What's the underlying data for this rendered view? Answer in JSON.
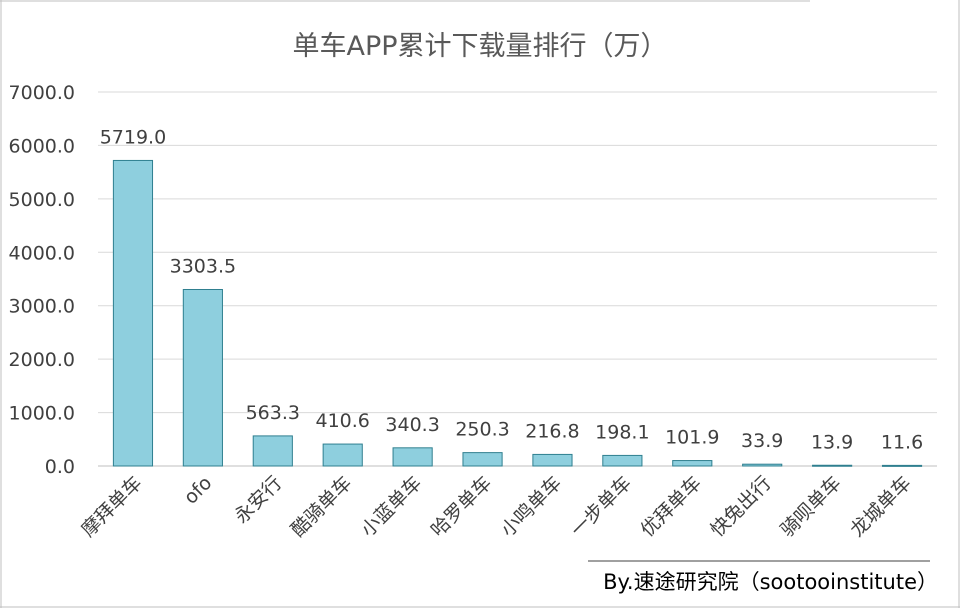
{
  "chart_data": {
    "type": "bar",
    "title": "单车APP累计下载量排行（万）",
    "categories": [
      "摩拜单车",
      "ofo",
      "永安行",
      "酷骑单车",
      "小蓝单车",
      "哈罗单车",
      "小鸣单车",
      "一步单车",
      "优拜单车",
      "快兔出行",
      "骑呗单车",
      "龙城单车"
    ],
    "values": [
      5719.0,
      3303.5,
      563.3,
      410.6,
      340.3,
      250.3,
      216.8,
      198.1,
      101.9,
      33.9,
      13.9,
      11.6
    ],
    "value_labels": [
      "5719.0",
      "3303.5",
      "563.3",
      "410.6",
      "340.3",
      "250.3",
      "216.8",
      "198.1",
      "101.9",
      "33.9",
      "13.9",
      "11.6"
    ],
    "ylim": [
      0,
      7000
    ],
    "yticks": [
      0,
      1000,
      2000,
      3000,
      4000,
      5000,
      6000,
      7000
    ],
    "ytick_labels": [
      "0.0",
      "1000.0",
      "2000.0",
      "3000.0",
      "4000.0",
      "5000.0",
      "6000.0",
      "7000.0"
    ],
    "xlabel": "",
    "ylabel": "",
    "grid": true,
    "legend": "none",
    "bar_color": "#8ecfde",
    "bar_edge_color": "#2f7f8f",
    "grid_color": "#d9d9d9",
    "annotation": "By.速途研究院（sootooinstitute）"
  }
}
